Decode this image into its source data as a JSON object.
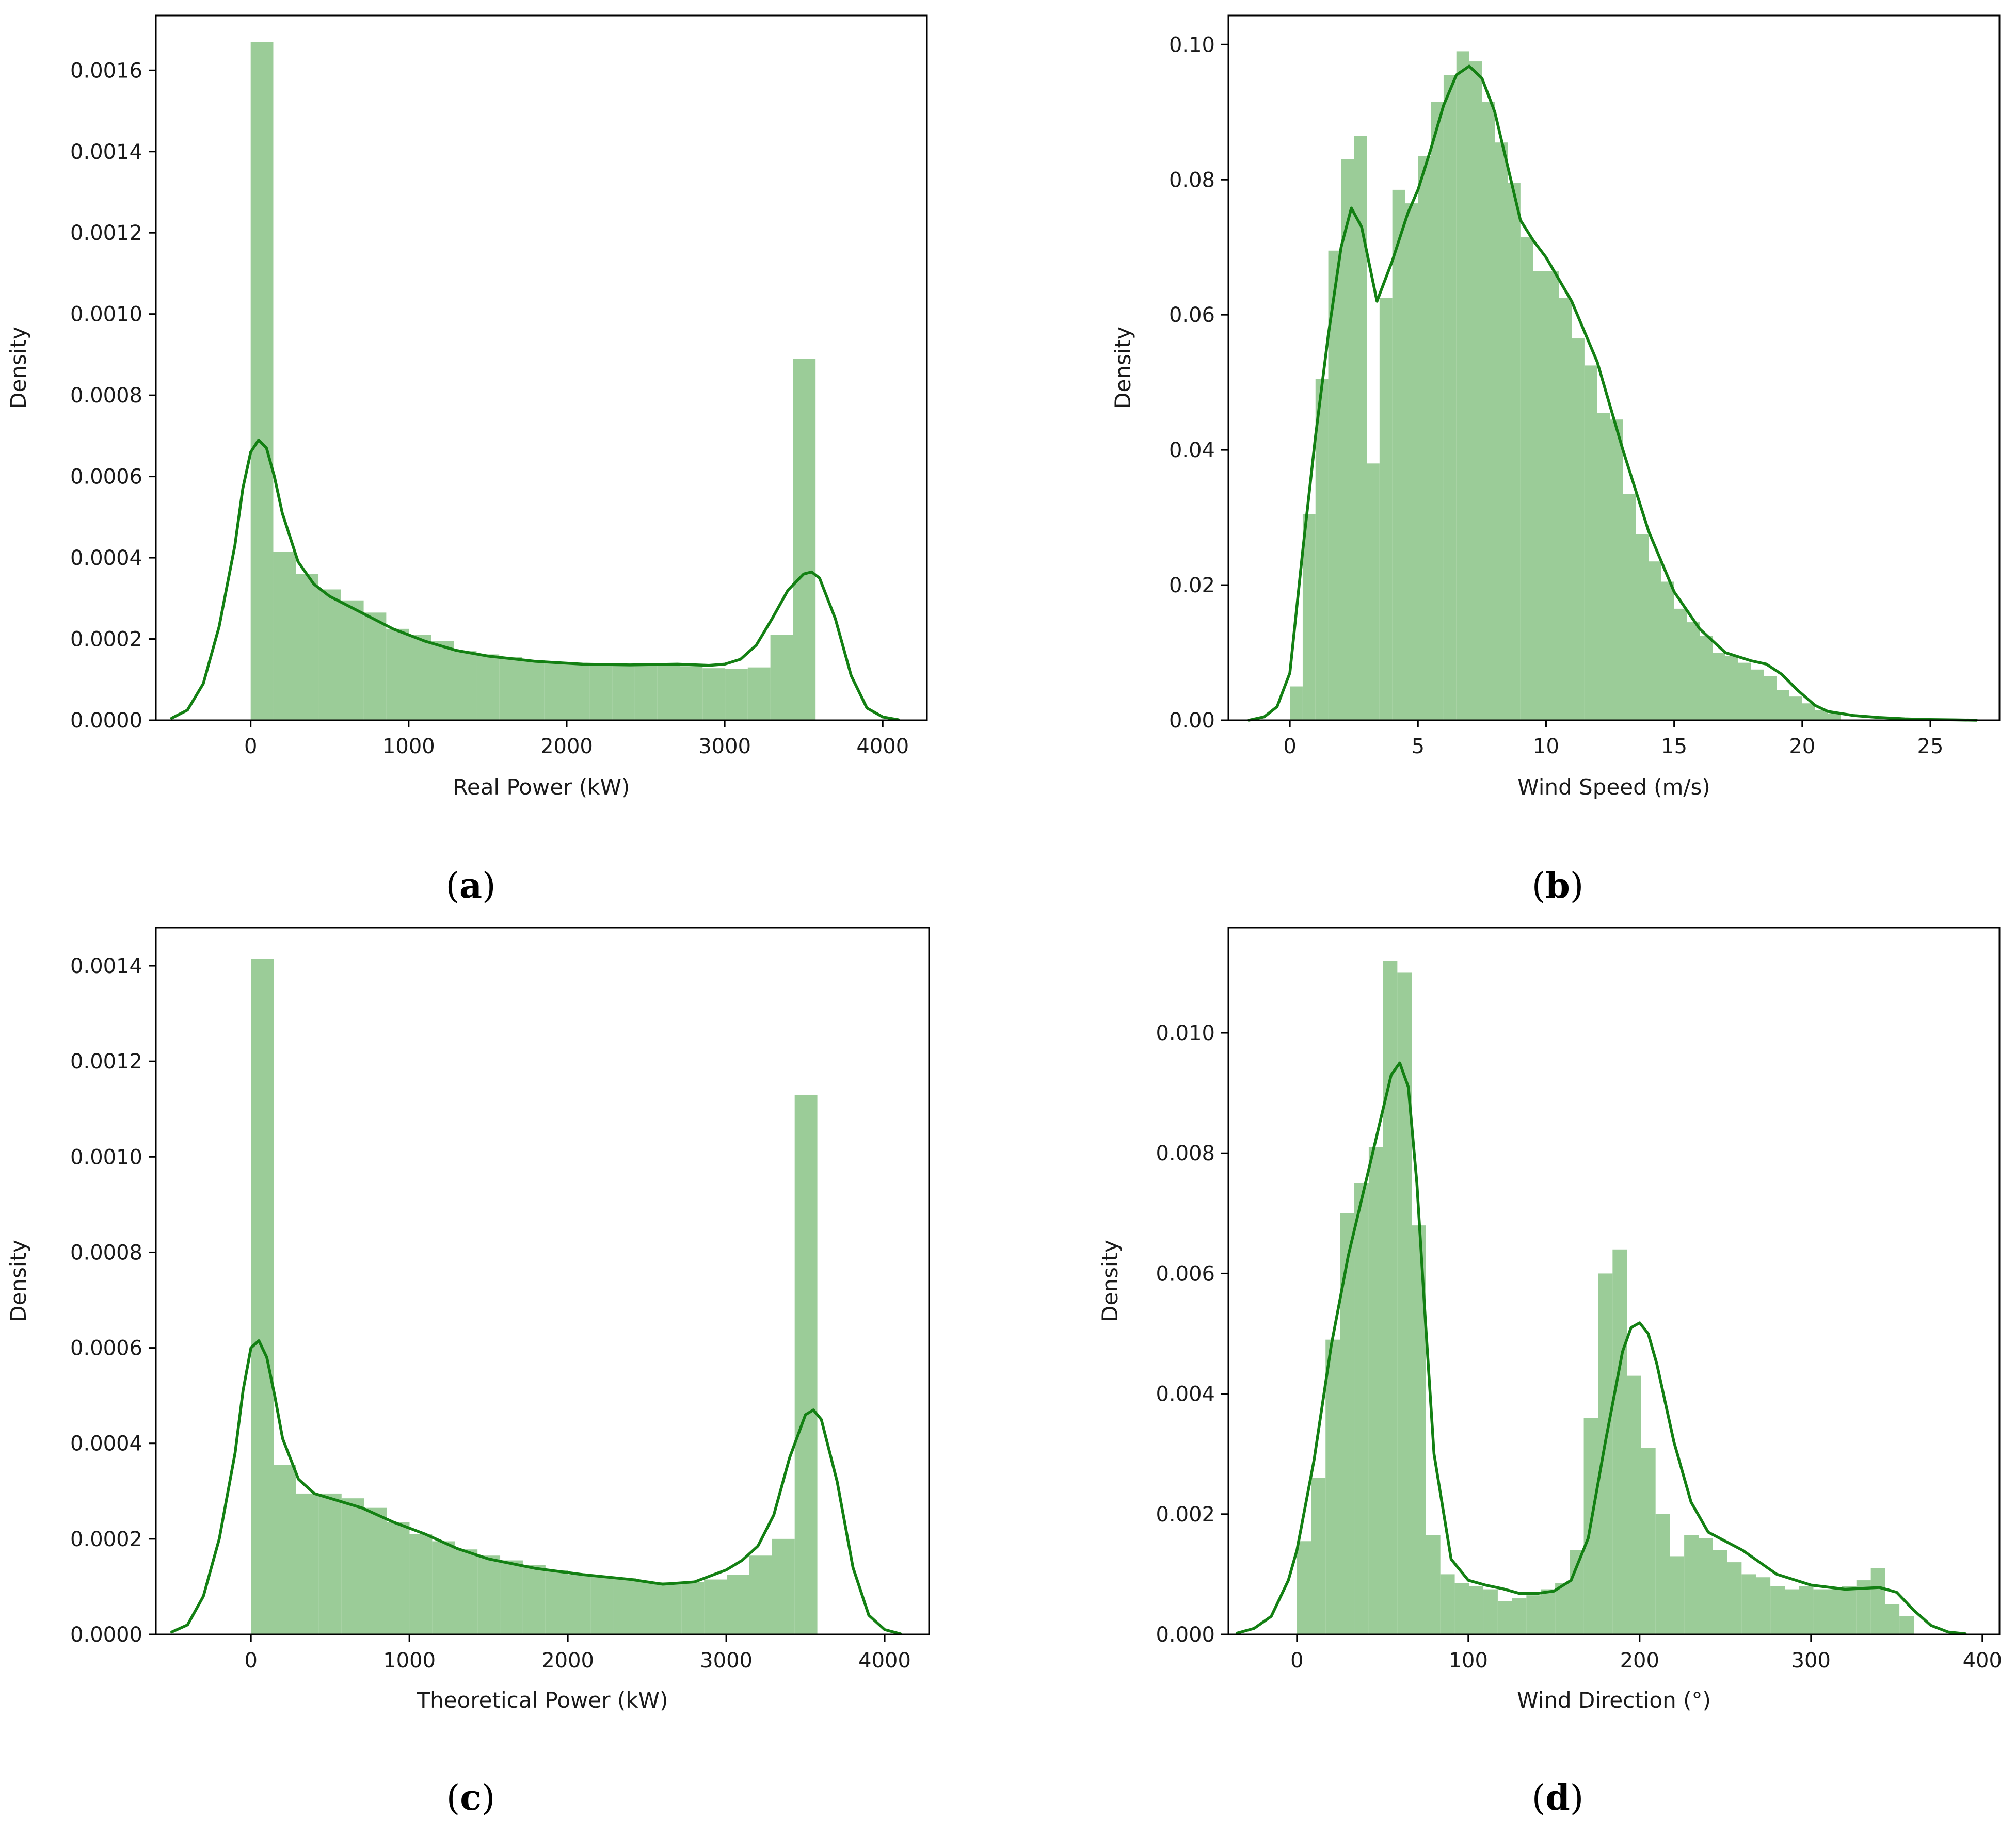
{
  "colors": {
    "bar": "#9bcc98",
    "kde": "#138013",
    "axis": "#000000",
    "text": "#1a1a1a"
  },
  "chart_data": [
    {
      "id": "a",
      "type": "bar",
      "caption": "a",
      "xlabel": "Real Power (kW)",
      "ylabel": "Density",
      "xlim": [
        -600,
        4280
      ],
      "ylim": [
        0,
        0.001735
      ],
      "xticks": [
        0,
        1000,
        2000,
        3000,
        4000
      ],
      "xtick_labels": [
        "0",
        "1000",
        "2000",
        "3000",
        "4000"
      ],
      "yticks": [
        0,
        0.0002,
        0.0004,
        0.0006,
        0.0008,
        0.001,
        0.0012,
        0.0014,
        0.0016
      ],
      "ytick_labels": [
        "0.0000",
        "0.0002",
        "0.0004",
        "0.0006",
        "0.0008",
        "0.0010",
        "0.0012",
        "0.0014",
        "0.0016"
      ],
      "bin_edges": [
        0,
        143,
        286,
        429,
        572,
        715,
        858,
        1001,
        1144,
        1287,
        1430,
        1573,
        1716,
        1859,
        2002,
        2145,
        2288,
        2431,
        2574,
        2717,
        2860,
        3003,
        3146,
        3289,
        3432,
        3575
      ],
      "values": [
        0.00167,
        0.000415,
        0.00036,
        0.000322,
        0.000295,
        0.000265,
        0.000225,
        0.00021,
        0.000195,
        0.00017,
        0.000162,
        0.000155,
        0.000148,
        0.000143,
        0.00014,
        0.000138,
        0.000136,
        0.000135,
        0.000134,
        0.000133,
        0.000128,
        0.000127,
        0.00013,
        0.00021,
        0.00089
      ],
      "kde_x": [
        -500,
        -400,
        -300,
        -200,
        -100,
        -50,
        0,
        50,
        100,
        150,
        200,
        300,
        400,
        500,
        700,
        900,
        1100,
        1300,
        1500,
        1800,
        2100,
        2400,
        2700,
        2900,
        3000,
        3100,
        3200,
        3300,
        3400,
        3500,
        3550,
        3600,
        3700,
        3800,
        3900,
        4000,
        4100
      ],
      "kde_y": [
        5e-06,
        2.5e-05,
        9e-05,
        0.00023,
        0.00043,
        0.00057,
        0.00066,
        0.00069,
        0.00067,
        0.0006,
        0.00051,
        0.00039,
        0.000335,
        0.000305,
        0.000265,
        0.000225,
        0.000195,
        0.000172,
        0.000158,
        0.000145,
        0.000138,
        0.000136,
        0.000138,
        0.000135,
        0.000138,
        0.00015,
        0.000185,
        0.00025,
        0.00032,
        0.00036,
        0.000365,
        0.00035,
        0.00025,
        0.00011,
        3e-05,
        8e-06,
        1e-06
      ]
    },
    {
      "id": "b",
      "type": "bar",
      "caption": "b",
      "xlabel": "Wind Speed (m/s)",
      "ylabel": "Density",
      "xlim": [
        -2.4,
        27.7
      ],
      "ylim": [
        0,
        0.1043
      ],
      "xticks": [
        0,
        5,
        10,
        15,
        20,
        25
      ],
      "xtick_labels": [
        "0",
        "5",
        "10",
        "15",
        "20",
        "25"
      ],
      "yticks": [
        0,
        0.02,
        0.04,
        0.06,
        0.08,
        0.1
      ],
      "ytick_labels": [
        "0.00",
        "0.02",
        "0.04",
        "0.06",
        "0.08",
        "0.10"
      ],
      "bin_edges": [
        0,
        0.5,
        1,
        1.5,
        2,
        2.5,
        3,
        3.5,
        4,
        4.5,
        5,
        5.5,
        6,
        6.5,
        7,
        7.5,
        8,
        8.5,
        9,
        9.5,
        10,
        10.5,
        11,
        11.5,
        12,
        12.5,
        13,
        13.5,
        14,
        14.5,
        15,
        15.5,
        16,
        16.5,
        17,
        17.5,
        18,
        18.5,
        19,
        19.5,
        20,
        20.5,
        21,
        21.5
      ],
      "values": [
        0.005,
        0.0305,
        0.0505,
        0.0695,
        0.083,
        0.0865,
        0.038,
        0.0625,
        0.0785,
        0.0765,
        0.0835,
        0.0915,
        0.0955,
        0.099,
        0.0975,
        0.0915,
        0.0855,
        0.0795,
        0.0715,
        0.0665,
        0.0665,
        0.0625,
        0.0565,
        0.0525,
        0.0455,
        0.0445,
        0.0335,
        0.0275,
        0.0235,
        0.0205,
        0.0165,
        0.0145,
        0.0125,
        0.01,
        0.0095,
        0.0085,
        0.0075,
        0.0065,
        0.0045,
        0.0035,
        0.0025,
        0.0015,
        0.001
      ],
      "kde_x": [
        -1.6,
        -1,
        -0.5,
        0,
        0.5,
        1,
        1.5,
        2,
        2.4,
        2.8,
        3.4,
        4,
        4.6,
        5,
        5.5,
        6,
        6.5,
        7,
        7.5,
        8,
        8.5,
        9,
        9.5,
        10,
        11,
        12,
        13,
        14,
        15,
        16,
        17,
        18,
        18.6,
        19.2,
        19.8,
        20.5,
        21,
        22,
        23,
        24,
        25,
        26,
        26.8
      ],
      "kde_y": [
        0,
        0.0005,
        0.002,
        0.007,
        0.025,
        0.042,
        0.057,
        0.07,
        0.0758,
        0.073,
        0.062,
        0.068,
        0.075,
        0.0785,
        0.0845,
        0.091,
        0.0955,
        0.0968,
        0.095,
        0.09,
        0.082,
        0.074,
        0.071,
        0.0685,
        0.062,
        0.053,
        0.04,
        0.028,
        0.019,
        0.0135,
        0.01,
        0.0088,
        0.0083,
        0.0068,
        0.0045,
        0.0022,
        0.0013,
        0.0007,
        0.0004,
        0.0002,
        0.0001,
        5e-05,
        0
      ],
      "bar_color": "#9bcc98"
    },
    {
      "id": "c",
      "type": "bar",
      "caption": "c",
      "xlabel": "Theoretical Power (kW)",
      "ylabel": "Density",
      "xlim": [
        -600,
        4280
      ],
      "ylim": [
        0,
        0.00148
      ],
      "xticks": [
        0,
        1000,
        2000,
        3000,
        4000
      ],
      "xtick_labels": [
        "0",
        "1000",
        "2000",
        "3000",
        "4000"
      ],
      "yticks": [
        0,
        0.0002,
        0.0004,
        0.0006,
        0.0008,
        0.001,
        0.0012,
        0.0014
      ],
      "ytick_labels": [
        "0.0000",
        "0.0002",
        "0.0004",
        "0.0006",
        "0.0008",
        "0.0010",
        "0.0012",
        "0.0014"
      ],
      "bin_edges": [
        0,
        143,
        286,
        429,
        572,
        715,
        858,
        1001,
        1144,
        1287,
        1430,
        1573,
        1716,
        1859,
        2002,
        2145,
        2288,
        2431,
        2574,
        2717,
        2860,
        3003,
        3146,
        3289,
        3432,
        3575
      ],
      "values": [
        0.001415,
        0.000355,
        0.000295,
        0.000295,
        0.000285,
        0.000265,
        0.000235,
        0.00021,
        0.000195,
        0.000178,
        0.000165,
        0.000155,
        0.000145,
        0.000135,
        0.000125,
        0.00012,
        0.000118,
        0.00011,
        0.00011,
        0.00011,
        0.000115,
        0.000125,
        0.000165,
        0.0002,
        0.00113
      ],
      "kde_x": [
        -500,
        -400,
        -300,
        -200,
        -100,
        -50,
        0,
        50,
        100,
        150,
        200,
        300,
        400,
        500,
        700,
        900,
        1100,
        1300,
        1500,
        1800,
        2100,
        2400,
        2600,
        2800,
        3000,
        3100,
        3200,
        3300,
        3400,
        3500,
        3550,
        3600,
        3700,
        3800,
        3900,
        4000,
        4100
      ],
      "kde_y": [
        5e-06,
        2e-05,
        8e-05,
        0.0002,
        0.00038,
        0.00051,
        0.0006,
        0.000615,
        0.00058,
        0.0005,
        0.00041,
        0.000325,
        0.000295,
        0.000285,
        0.000265,
        0.000235,
        0.00021,
        0.00018,
        0.000158,
        0.000138,
        0.000125,
        0.000115,
        0.000105,
        0.00011,
        0.000135,
        0.000155,
        0.000185,
        0.00025,
        0.00037,
        0.00046,
        0.00047,
        0.00045,
        0.00032,
        0.00014,
        4e-05,
        1e-05,
        1e-06
      ]
    },
    {
      "id": "d",
      "type": "bar",
      "caption": "d",
      "xlabel": "Wind Direction (°)",
      "ylabel": "Density",
      "xlim": [
        -40,
        410
      ],
      "ylim": [
        0,
        0.01175
      ],
      "xticks": [
        0,
        100,
        200,
        300,
        400
      ],
      "xtick_labels": [
        "0",
        "100",
        "200",
        "300",
        "400"
      ],
      "yticks": [
        0,
        0.002,
        0.004,
        0.006,
        0.008,
        0.01
      ],
      "ytick_labels": [
        "0.000",
        "0.002",
        "0.004",
        "0.006",
        "0.008",
        "0.010"
      ],
      "bin_edges": [
        0,
        8.4,
        16.7,
        25.1,
        33.5,
        41.9,
        50.2,
        58.6,
        67,
        75.3,
        83.7,
        92.1,
        100.5,
        108.8,
        117.2,
        125.6,
        133.9,
        142.3,
        150.7,
        159.1,
        167.4,
        175.8,
        184.2,
        192.6,
        200.9,
        209.3,
        217.7,
        226,
        234.4,
        242.8,
        251.2,
        259.5,
        267.9,
        276.3,
        284.7,
        293,
        301.4,
        309.8,
        318.1,
        326.5,
        334.9,
        343.3,
        351.6,
        360
      ],
      "values": [
        0.00155,
        0.0026,
        0.0049,
        0.007,
        0.0075,
        0.0081,
        0.0112,
        0.011,
        0.0068,
        0.00165,
        0.001,
        0.00085,
        0.0008,
        0.00075,
        0.00055,
        0.0006,
        0.00065,
        0.00075,
        0.00085,
        0.0014,
        0.0036,
        0.006,
        0.0064,
        0.0043,
        0.0031,
        0.002,
        0.0013,
        0.00165,
        0.0016,
        0.0014,
        0.0012,
        0.001,
        0.00095,
        0.0008,
        0.00075,
        0.0008,
        0.00075,
        0.00075,
        0.0008,
        0.0009,
        0.0011,
        0.0005,
        0.0003
      ],
      "kde_x": [
        -35,
        -25,
        -15,
        -5,
        0,
        10,
        20,
        30,
        40,
        50,
        55,
        60,
        65,
        70,
        75,
        80,
        90,
        100,
        110,
        120,
        130,
        140,
        150,
        160,
        170,
        180,
        190,
        195,
        200,
        205,
        210,
        220,
        230,
        240,
        260,
        280,
        300,
        320,
        340,
        350,
        360,
        370,
        380,
        390
      ],
      "kde_y": [
        2e-05,
        0.0001,
        0.0003,
        0.0009,
        0.0014,
        0.0029,
        0.0048,
        0.0063,
        0.0075,
        0.0087,
        0.0093,
        0.0095,
        0.0091,
        0.0075,
        0.0052,
        0.003,
        0.00125,
        0.0009,
        0.00082,
        0.00076,
        0.00068,
        0.00068,
        0.00072,
        0.0009,
        0.0016,
        0.0032,
        0.0047,
        0.0051,
        0.00518,
        0.005,
        0.0045,
        0.0032,
        0.0022,
        0.0017,
        0.0014,
        0.001,
        0.00082,
        0.00075,
        0.00078,
        0.0007,
        0.0004,
        0.00015,
        4e-05,
        1e-05
      ]
    }
  ]
}
